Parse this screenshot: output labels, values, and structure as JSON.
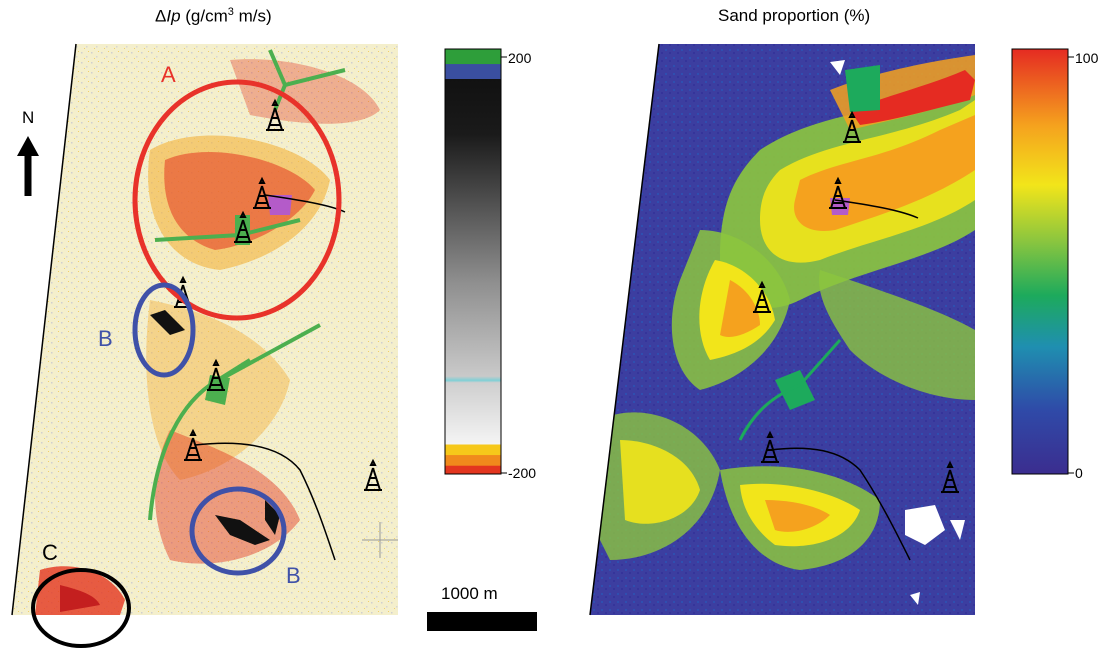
{
  "left_panel": {
    "title_prefix": "Δ",
    "title_var": "Ip",
    "title_unit_a": " (g/cm",
    "title_sup": "3",
    "title_unit_b": " m/s)",
    "colorbar": {
      "max_label": "200",
      "min_label": "-200"
    },
    "region_labels": {
      "a": "A",
      "b1": "B",
      "b2": "B",
      "c": "C"
    },
    "region_colors": {
      "a": "#e8322a",
      "b": "#3f51a8",
      "c": "#000000"
    }
  },
  "right_panel": {
    "title": "Sand proportion (%)",
    "colorbar": {
      "max_label": "100",
      "min_label": "0"
    }
  },
  "north_arrow": {
    "label": "N"
  },
  "scale_bar": {
    "label": "1000 m"
  },
  "colors": {
    "map_background_left": "#f4efcc",
    "map_background_right": "#3c3ea0",
    "high_ip": "#e3361f",
    "well_paths": "#4caf4f"
  }
}
